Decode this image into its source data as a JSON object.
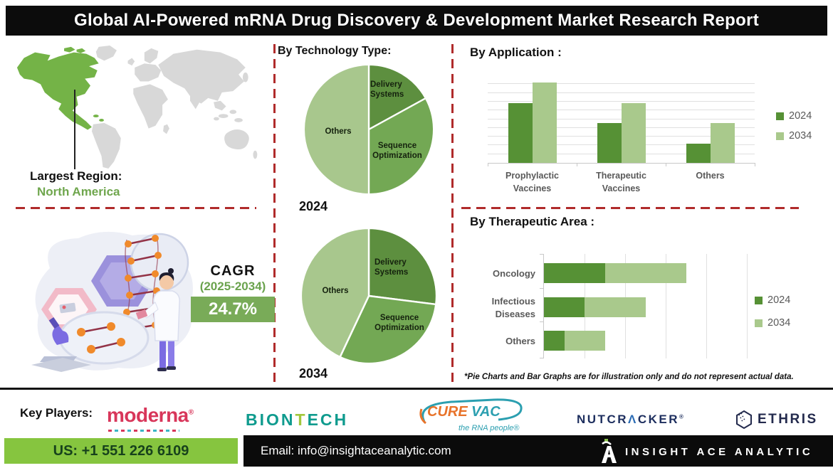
{
  "title": "Global AI-Powered mRNA Drug Discovery & Development Market Research Report",
  "region": {
    "label": "Largest Region:",
    "value": "North America"
  },
  "cagr": {
    "label": "CAGR",
    "period": "(2025-2034)",
    "value": "24.7%"
  },
  "sections": {
    "technology": {
      "heading": "By Technology Type:"
    },
    "application": {
      "heading": "By Application :"
    },
    "therapeutic": {
      "heading": "By Therapeutic Area :"
    }
  },
  "chart_data": [
    {
      "type": "pie",
      "name": "technology-2024",
      "year_label": "2024",
      "labels": [
        "Delivery Systems",
        "Sequence Optimization",
        "Others"
      ],
      "values": [
        17,
        33,
        50
      ],
      "colors": [
        "#5d8f3f",
        "#73a854",
        "#a8c78d"
      ]
    },
    {
      "type": "pie",
      "name": "technology-2034",
      "year_label": "2034",
      "labels": [
        "Delivery Systems",
        "Sequence Optimization",
        "Others"
      ],
      "values": [
        27,
        30,
        43
      ],
      "colors": [
        "#5d8f3f",
        "#73a854",
        "#a8c78d"
      ]
    },
    {
      "type": "bar",
      "name": "application",
      "title": "By Application :",
      "categories": [
        "Prophylactic Vaccines",
        "Therapeutic Vaccines",
        "Others"
      ],
      "series": [
        {
          "name": "2024",
          "color": "#569135",
          "values": [
            65,
            43,
            21
          ]
        },
        {
          "name": "2034",
          "color": "#a9c98c",
          "values": [
            87,
            65,
            43
          ]
        }
      ],
      "ylim": [
        0,
        95
      ],
      "grid": true,
      "legend_position": "right"
    },
    {
      "type": "bar",
      "subtype": "horizontal-stacked",
      "name": "therapeutic-area",
      "title": "By Therapeutic Area :",
      "categories": [
        "Oncology",
        "Infectious Diseases",
        "Others"
      ],
      "series": [
        {
          "name": "2024",
          "color": "#569135",
          "values": [
            1.5,
            1.0,
            0.5
          ]
        },
        {
          "name": "2034",
          "color": "#a9c98c",
          "values": [
            2.0,
            1.5,
            1.0
          ]
        }
      ],
      "xlim": [
        0,
        5.5
      ],
      "grid": true,
      "legend_position": "right"
    }
  ],
  "footnote": "*Pie Charts and Bar Graphs are for illustration only and do not represent actual data.",
  "key_players": {
    "label": "Key Players:",
    "moderna": {
      "name": "moderna",
      "reg": "®",
      "color": "#d8365a"
    },
    "biontech": {
      "part1": "BION",
      "part2": "T",
      "part3": "ECH",
      "teal": "#0f9b8e",
      "green": "#a2c73c"
    },
    "curevac": {
      "part1": "CURE",
      "part2": "VAC",
      "tagline": "the RNA people®",
      "orange": "#e8732a",
      "teal": "#2b9fb0"
    },
    "nutcracker": {
      "part1": "NUTCR",
      "part2": "Λ",
      "part3": "CKER",
      "reg": "®",
      "color": "#1d2e5e"
    },
    "ethris": {
      "name": "ETHRIS",
      "color": "#232a4d"
    }
  },
  "footer": {
    "phone": "US: +1 551 226 6109",
    "email": "Email: info@insightaceanalytic.com",
    "brand": "INSIGHT ACE ANALYTIC"
  }
}
